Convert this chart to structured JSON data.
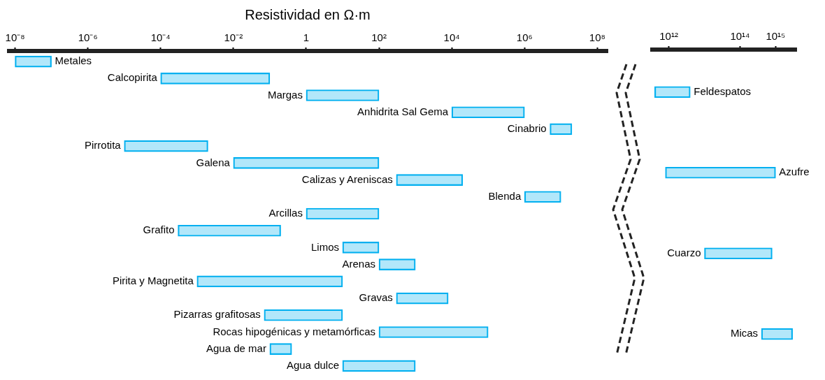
{
  "chart_data": [
    {
      "type": "bar",
      "orientation": "horizontal",
      "xlabel": "Resistividad en Ω·m",
      "log": "x",
      "tick_labels": "x",
      "grid": false,
      "color": "#00b0f0",
      "categories": [
        "Metales",
        "Calcopirita",
        "Margas",
        "Anhidrita Sal Gema",
        "Cinabrio",
        "Pirrotita",
        "Galena",
        "Calizas y Areniscas",
        "Blenda",
        "Arcillas",
        "Grafito",
        "Limos",
        "Arenas",
        "Pirita y Magnetita",
        "Gravas",
        "Pizarras grafitosas",
        "Rocas hipogénicas y metamórficas",
        "Agua de mar",
        "Agua dulce"
      ],
      "base": [
        1e-08,
        0.0001,
        1,
        10000,
        5000000,
        1e-05,
        0.01,
        300,
        1000000,
        1,
        0.0003,
        10,
        100,
        0.001,
        300,
        0.07,
        100,
        0.1,
        10
      ],
      "values": [
        9e-08,
        0.0999,
        99,
        990000,
        15000000,
        0.00199,
        99.99,
        19700,
        9000000,
        99,
        0.1997,
        90,
        900,
        9.999,
        7700,
        9.93,
        99900,
        0.3,
        990
      ],
      "xlim": [
        6e-09,
        200000000.0
      ],
      "xticks": [
        {
          "value": 1e-08,
          "label": "10⁻⁸"
        },
        {
          "value": 1e-06,
          "label": "10⁻⁶"
        },
        {
          "value": 0.0001,
          "label": "10⁻⁴"
        },
        {
          "value": 0.01,
          "label": "10⁻²"
        },
        {
          "value": 1,
          "label": "1"
        },
        {
          "value": 100,
          "label": "10²"
        },
        {
          "value": 10000,
          "label": "10⁴"
        },
        {
          "value": 1000000,
          "label": "10⁶"
        },
        {
          "value": 100000000,
          "label": "10⁸"
        }
      ]
    },
    {
      "type": "bar",
      "orientation": "horizontal",
      "log": "x",
      "tick_labels": "x",
      "grid": false,
      "color": "#00b0f0",
      "categories": [
        "Feldespatos",
        "Azufre",
        "Cuarzo",
        "Micas"
      ],
      "base": [
        400000000000.0,
        800000000000.0,
        10000000000000.0,
        400000000000000.0
      ],
      "values": [
        3600000000000.0,
        999200000000000.0,
        790000000000000.0,
        2600000000000000.0
      ],
      "xlim": [
        300000000000.0,
        4000000000000000.0
      ],
      "xticks": [
        {
          "value": 1000000000000.0,
          "label": "10¹²"
        },
        {
          "value": 100000000000000.0,
          "label": "10¹⁴"
        },
        {
          "value": 1000000000000000.0,
          "label": "10¹⁵"
        }
      ]
    }
  ]
}
